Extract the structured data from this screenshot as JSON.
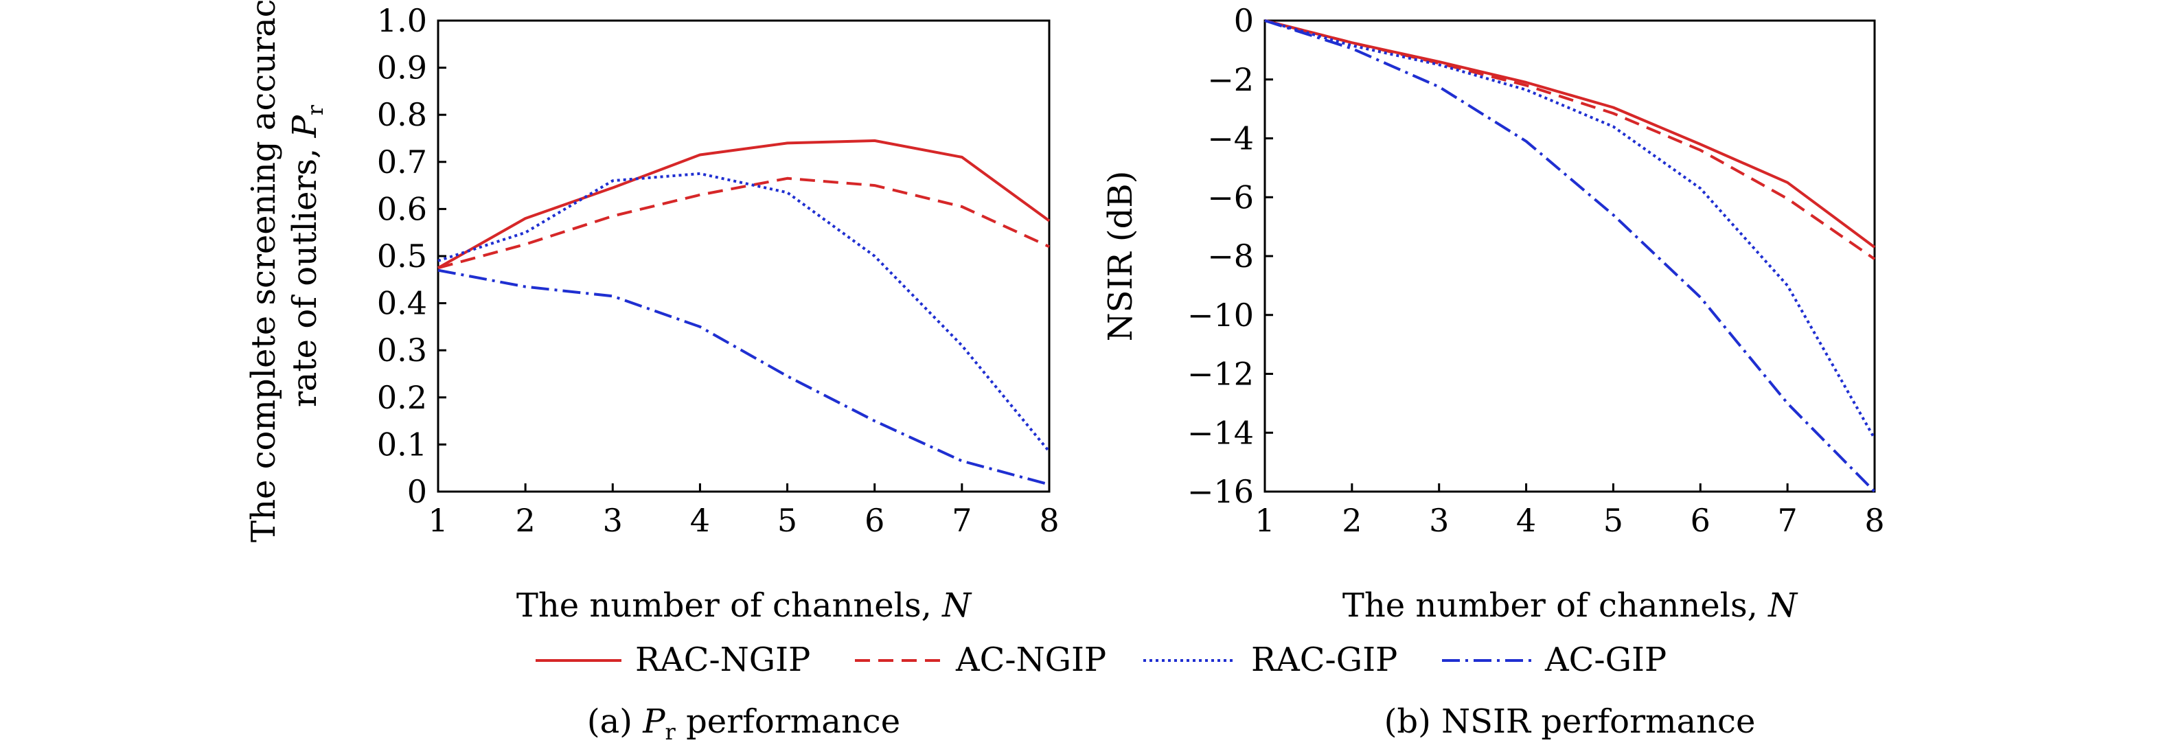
{
  "colors": {
    "red": "#d62728",
    "blue": "#1f2fd1"
  },
  "legend": {
    "items": [
      {
        "label": "RAC-NGIP",
        "color": "#d62728",
        "dash": "solid"
      },
      {
        "label": "AC-NGIP",
        "color": "#d62728",
        "dash": "dashed"
      },
      {
        "label": "RAC-GIP",
        "color": "#1f2fd1",
        "dash": "dotted"
      },
      {
        "label": "AC-GIP",
        "color": "#1f2fd1",
        "dash": "dashdot"
      }
    ]
  },
  "chart_data": [
    {
      "type": "line",
      "caption_prefix": "(a) ",
      "caption_symbol": "P",
      "caption_sub": "r",
      "caption_suffix": " performance",
      "xlabel_text": "The number of channels, ",
      "xlabel_symbol": "N",
      "ylabel_line1": "The complete screening accuracy",
      "ylabel_line2_text": "rate of outliers, ",
      "ylabel_symbol": "P",
      "ylabel_sub": "r",
      "x": [
        1,
        2,
        3,
        4,
        5,
        6,
        7,
        8
      ],
      "xlim": [
        1,
        8
      ],
      "ylim": [
        0,
        1.0
      ],
      "xticks": [
        "1",
        "2",
        "3",
        "4",
        "5",
        "6",
        "7",
        "8"
      ],
      "yticks": [
        "0",
        "0.1",
        "0.2",
        "0.3",
        "0.4",
        "0.5",
        "0.6",
        "0.7",
        "0.8",
        "0.9",
        "1.0"
      ],
      "grid": false,
      "series": [
        {
          "name": "RAC-NGIP",
          "values": [
            0.475,
            0.58,
            0.645,
            0.715,
            0.74,
            0.745,
            0.71,
            0.575
          ]
        },
        {
          "name": "AC-NGIP",
          "values": [
            0.475,
            0.525,
            0.585,
            0.63,
            0.665,
            0.65,
            0.605,
            0.52
          ]
        },
        {
          "name": "RAC-GIP",
          "values": [
            0.49,
            0.55,
            0.66,
            0.675,
            0.635,
            0.5,
            0.31,
            0.085
          ]
        },
        {
          "name": "AC-GIP",
          "values": [
            0.47,
            0.435,
            0.415,
            0.35,
            0.245,
            0.15,
            0.065,
            0.015
          ]
        }
      ]
    },
    {
      "type": "line",
      "caption_prefix": "(b) NSIR performance",
      "caption_symbol": "",
      "caption_sub": "",
      "caption_suffix": "",
      "xlabel_text": "The number of channels, ",
      "xlabel_symbol": "N",
      "ylabel_line1": "",
      "ylabel_line2_text": "NSIR (dB)",
      "ylabel_symbol": "",
      "ylabel_sub": "",
      "x": [
        1,
        2,
        3,
        4,
        5,
        6,
        7,
        8
      ],
      "xlim": [
        1,
        8
      ],
      "ylim": [
        -16,
        0
      ],
      "xticks": [
        "1",
        "2",
        "3",
        "4",
        "5",
        "6",
        "7",
        "8"
      ],
      "yticks": [
        "-16",
        "-14",
        "-12",
        "-10",
        "-8",
        "-6",
        "-4",
        "-2",
        "0"
      ],
      "grid": false,
      "series": [
        {
          "name": "RAC-NGIP",
          "values": [
            0,
            -0.75,
            -1.4,
            -2.1,
            -2.95,
            -4.2,
            -5.5,
            -7.7
          ]
        },
        {
          "name": "AC-NGIP",
          "values": [
            0,
            -0.75,
            -1.45,
            -2.2,
            -3.15,
            -4.4,
            -6.05,
            -8.1
          ]
        },
        {
          "name": "RAC-GIP",
          "values": [
            0,
            -0.85,
            -1.5,
            -2.35,
            -3.6,
            -5.7,
            -9.0,
            -14.2
          ]
        },
        {
          "name": "AC-GIP",
          "values": [
            0,
            -0.95,
            -2.25,
            -4.1,
            -6.6,
            -9.4,
            -13.0,
            -16.0
          ]
        }
      ]
    }
  ]
}
